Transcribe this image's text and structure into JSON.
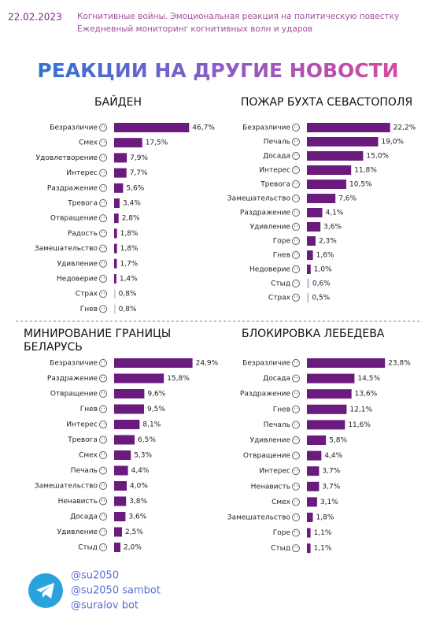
{
  "header": {
    "date": "22.02.2023",
    "subtitle": [
      "Когнитивные войны. Эмоциональная реакция на политическую повестку",
      "Ежедневный мониторинг когнитивных волн и ударов"
    ],
    "title": "РЕАКЦИИ НА ДРУГИЕ НОВОСТИ"
  },
  "footer": {
    "handles": [
      "@su2050",
      "@su2050 sambot",
      "@suralov bot"
    ]
  },
  "chart_data": [
    {
      "type": "bar",
      "orientation": "horizontal",
      "title": "БАЙДЕН",
      "categories": [
        "Безразличие",
        "Смех",
        "Удовлетворение",
        "Интерес",
        "Раздражение",
        "Тревога",
        "Отвращение",
        "Радость",
        "Замешательство",
        "Удивление",
        "Недоверие",
        "Страх",
        "Гнев"
      ],
      "values": [
        46.7,
        17.5,
        7.9,
        7.7,
        5.6,
        3.4,
        2.8,
        1.8,
        1.8,
        1.7,
        1.4,
        0.8,
        0.8
      ],
      "value_labels": [
        "46,7%",
        "17,5%",
        "7,9%",
        "7,7%",
        "5,6%",
        "3,4%",
        "2,8%",
        "1,8%",
        "1,8%",
        "1,7%",
        "1,4%",
        "0,8%",
        "0,8%"
      ],
      "colors": [
        "#6b1a7e",
        "#6b1a7e",
        "#6b1a7e",
        "#6b1a7e",
        "#6b1a7e",
        "#6b1a7e",
        "#6b1a7e",
        "#6b1a7e",
        "#6b1a7e",
        "#6b1a7e",
        "#6b1a7e",
        "#cfc9d2",
        "#cfc9d2"
      ],
      "xlim": [
        0,
        49
      ]
    },
    {
      "type": "bar",
      "orientation": "horizontal",
      "title": "ПОЖАР БУХТА СЕВАСТОПОЛЯ",
      "categories": [
        "Безразличие",
        "Печаль",
        "Досада",
        "Интерес",
        "Тревога",
        "Замешательство",
        "Раздражение",
        "Удивление",
        "Горе",
        "Гнев",
        "Недоверие",
        "Стыд",
        "Страх"
      ],
      "values": [
        22.2,
        19.0,
        15.0,
        11.8,
        10.5,
        7.6,
        4.1,
        3.6,
        2.3,
        1.6,
        1.0,
        0.6,
        0.5
      ],
      "value_labels": [
        "22,2%",
        "19,0%",
        "15,0%",
        "11,8%",
        "10,5%",
        "7,6%",
        "4,1%",
        "3,6%",
        "2,3%",
        "1,6%",
        "1,0%",
        "0,6%",
        "0,5%"
      ],
      "colors": [
        "#6b1a7e",
        "#6b1a7e",
        "#6b1a7e",
        "#6b1a7e",
        "#6b1a7e",
        "#6b1a7e",
        "#6b1a7e",
        "#6b1a7e",
        "#6b1a7e",
        "#6b1a7e",
        "#6b1a7e",
        "#cfc9d2",
        "#cfc9d2"
      ],
      "xlim": [
        0,
        21
      ]
    },
    {
      "type": "bar",
      "orientation": "horizontal",
      "title": "МИНИРОВАНИЕ ГРАНИЦЫ БЕЛАРУСЬ",
      "categories": [
        "Безразличие",
        "Раздражение",
        "Отвращение",
        "Гнев",
        "Интерес",
        "Тревога",
        "Смех",
        "Печаль",
        "Замешательство",
        "Ненависть",
        "Досада",
        "Удивление",
        "Стыд"
      ],
      "values": [
        24.9,
        15.8,
        9.6,
        9.5,
        8.1,
        6.5,
        5.3,
        4.4,
        4.0,
        3.8,
        3.6,
        2.5,
        2.0
      ],
      "value_labels": [
        "24,9%",
        "15,8%",
        "9,6%",
        "9,5%",
        "8,1%",
        "6,5%",
        "5,3%",
        "4,4%",
        "4,0%",
        "3,8%",
        "3,6%",
        "2,5%",
        "2,0%"
      ],
      "colors": [
        "#6b1a7e",
        "#6b1a7e",
        "#6b1a7e",
        "#6b1a7e",
        "#6b1a7e",
        "#6b1a7e",
        "#6b1a7e",
        "#6b1a7e",
        "#6b1a7e",
        "#6b1a7e",
        "#6b1a7e",
        "#6b1a7e",
        "#6b1a7e"
      ],
      "xlim": [
        0,
        25
      ]
    },
    {
      "type": "bar",
      "orientation": "horizontal",
      "title": "БЛОКИРОВКА ЛЕБЕДЕВА",
      "categories": [
        "Безразличие",
        "Досада",
        "Раздражение",
        "Гнев",
        "Печаль",
        "Удивление",
        "Отвращение",
        "Интерес",
        "Ненависть",
        "Смех",
        "Замешательство",
        "Горе",
        "Стыд"
      ],
      "values": [
        23.8,
        14.5,
        13.6,
        12.1,
        11.6,
        5.8,
        4.4,
        3.7,
        3.7,
        3.1,
        1.8,
        1.1,
        1.1
      ],
      "value_labels": [
        "23,8%",
        "14,5%",
        "13,6%",
        "12,1%",
        "11,6%",
        "5,8%",
        "4,4%",
        "3,7%",
        "3,7%",
        "3,1%",
        "1,8%",
        "1,1%",
        "1,1%"
      ],
      "colors": [
        "#6b1a7e",
        "#6b1a7e",
        "#6b1a7e",
        "#6b1a7e",
        "#6b1a7e",
        "#6b1a7e",
        "#6b1a7e",
        "#6b1a7e",
        "#6b1a7e",
        "#6b1a7e",
        "#6b1a7e",
        "#6b1a7e",
        "#6b1a7e"
      ],
      "xlim": [
        0,
        24
      ]
    }
  ]
}
